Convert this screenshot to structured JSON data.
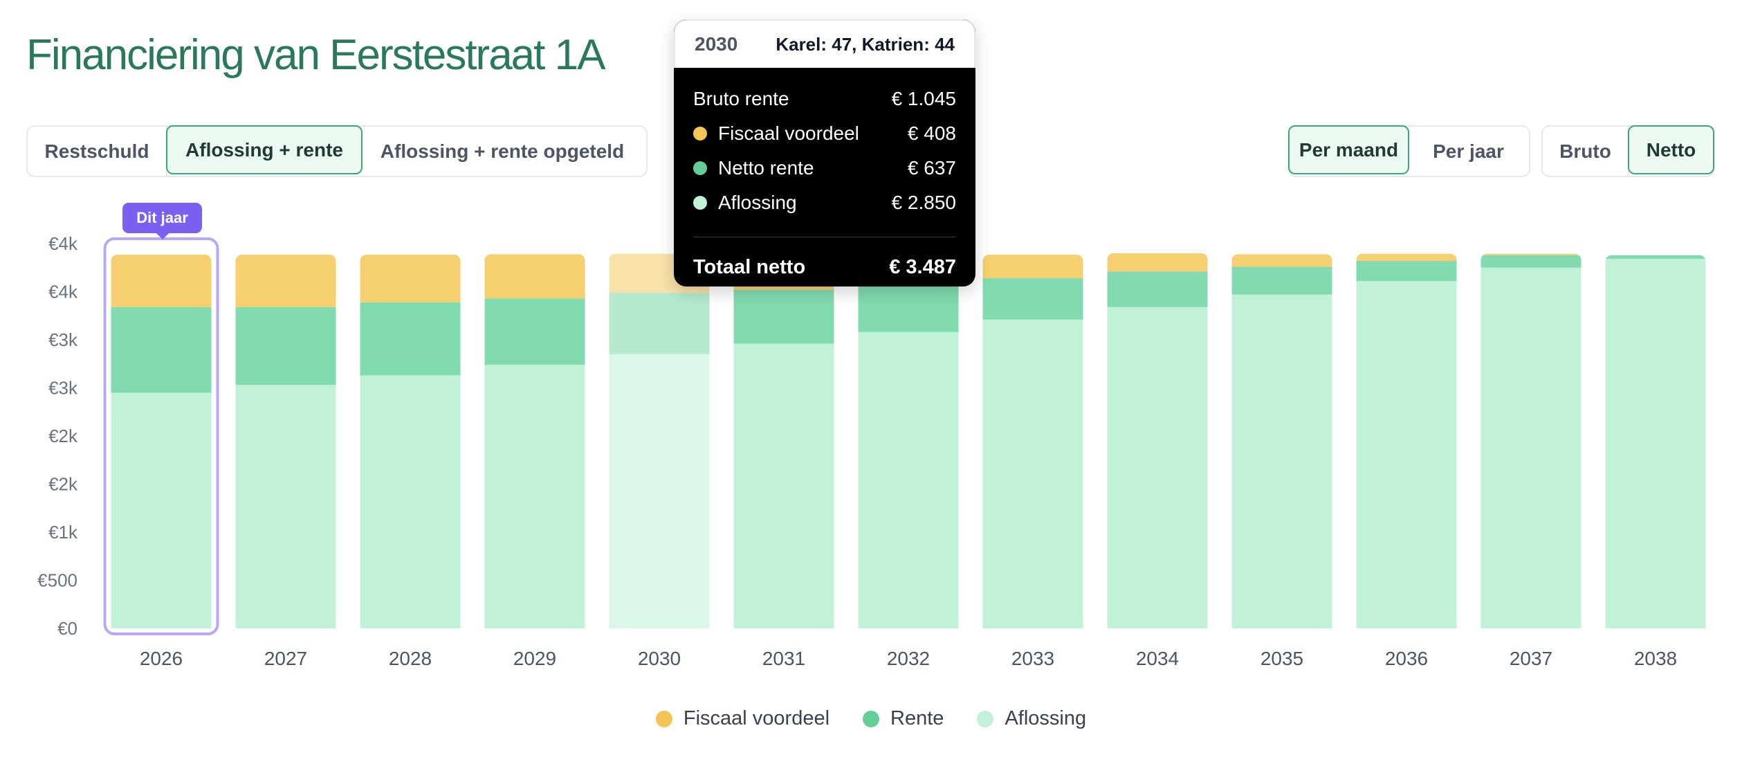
{
  "page": {
    "title": "Financiering van Eerstestraat 1A"
  },
  "view_toggle": [
    {
      "label": "Restschuld",
      "active": false
    },
    {
      "label": "Aflossing + rente",
      "active": true
    },
    {
      "label": "Aflossing + rente opgeteld",
      "active": false
    }
  ],
  "period_toggle": [
    {
      "label": "Per maand",
      "active": true
    },
    {
      "label": "Per jaar",
      "active": false
    }
  ],
  "gross_toggle": [
    {
      "label": "Bruto",
      "active": false
    },
    {
      "label": "Netto",
      "active": true
    }
  ],
  "current_year_badge": "Dit jaar",
  "tooltip": {
    "year": "2030",
    "ages": "Karel: 47, Katrien: 44",
    "rows": [
      {
        "label": "Bruto rente",
        "value": "€ 1.045",
        "dot": null
      },
      {
        "label": "Fiscaal voordeel",
        "value": "€ 408",
        "dot": "#f6c659"
      },
      {
        "label": "Netto rente",
        "value": "€ 637",
        "dot": "#63cf98"
      },
      {
        "label": "Aflossing",
        "value": "€ 2.850",
        "dot": "#bff2d6"
      }
    ],
    "total_label": "Totaal netto",
    "total_value": "€ 3.487"
  },
  "colors": {
    "fiscaal": "#f5cf70",
    "rente": "#82dbb0",
    "aflossing": "#c1f2d8",
    "highlight": "#b9a8f5",
    "axis_text": "#6b7280"
  },
  "chart_data": {
    "type": "bar",
    "stacked": true,
    "categories": [
      "2026",
      "2027",
      "2028",
      "2029",
      "2030",
      "2031",
      "2032",
      "2033",
      "2034",
      "2035",
      "2036",
      "2037",
      "2038"
    ],
    "series": [
      {
        "name": "Aflossing",
        "color": "#c1f2d8",
        "values": [
          2450,
          2530,
          2630,
          2740,
          2850,
          2960,
          3080,
          3210,
          3340,
          3470,
          3610,
          3750,
          3840
        ]
      },
      {
        "name": "Rente",
        "color": "#82dbb0",
        "values": [
          890,
          810,
          760,
          690,
          637,
          560,
          490,
          430,
          370,
          290,
          210,
          130,
          40
        ]
      },
      {
        "name": "Fiscaal voordeel",
        "color": "#f5cf70",
        "values": [
          545,
          545,
          495,
          460,
          408,
          365,
          315,
          245,
          190,
          130,
          75,
          15,
          0
        ]
      }
    ],
    "y_ticks": [
      "€0",
      "€500",
      "€1k",
      "€2k",
      "€2k",
      "€3k",
      "€3k",
      "€4k",
      "€4k"
    ],
    "ylim": [
      0,
      4000
    ],
    "highlighted_category": "2026",
    "hovered_category": "2030",
    "legend": [
      "Fiscaal voordeel",
      "Rente",
      "Aflossing"
    ],
    "legend_position": "bottom-center",
    "grid": false
  }
}
